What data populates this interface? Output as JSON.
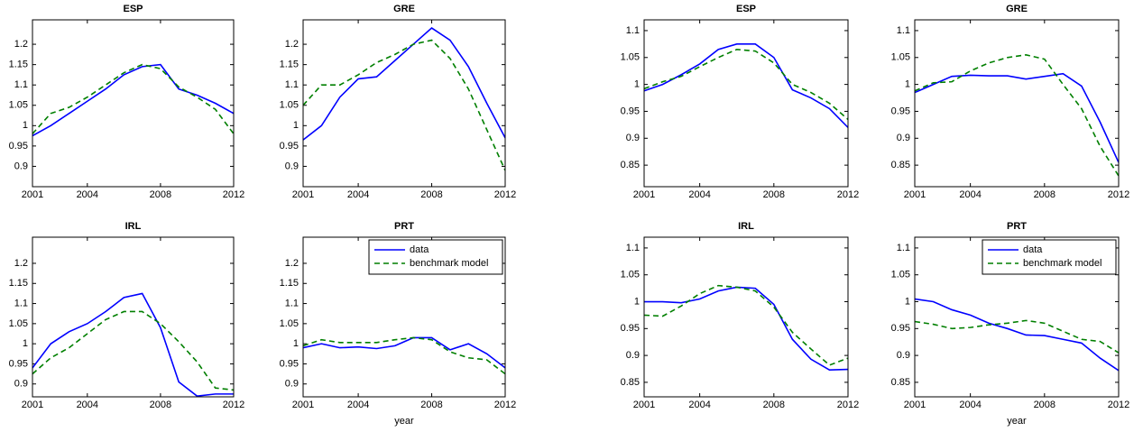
{
  "chart_data": [
    {
      "type": "line",
      "title": "ESP",
      "x": [
        2001,
        2002,
        2003,
        2004,
        2005,
        2006,
        2007,
        2008,
        2009,
        2010,
        2011,
        2012
      ],
      "xlim": [
        2001,
        2012
      ],
      "xticks": [
        2001,
        2004,
        2008,
        2012
      ],
      "ylim": [
        0.85,
        1.26
      ],
      "yticks": [
        0.9,
        0.95,
        1,
        1.05,
        1.1,
        1.15,
        1.2
      ],
      "series": [
        {
          "color": "#0000ff",
          "dash": "solid",
          "values": [
            0.975,
            1.0,
            1.03,
            1.06,
            1.09,
            1.125,
            1.145,
            1.15,
            1.09,
            1.075,
            1.055,
            1.03
          ]
        },
        {
          "color": "#007f00",
          "dash": "dashed",
          "values": [
            0.98,
            1.03,
            1.045,
            1.07,
            1.1,
            1.13,
            1.15,
            1.14,
            1.095,
            1.07,
            1.04,
            0.98
          ]
        }
      ]
    },
    {
      "type": "line",
      "title": "GRE",
      "x": [
        2001,
        2002,
        2003,
        2004,
        2005,
        2006,
        2007,
        2008,
        2009,
        2010,
        2011,
        2012
      ],
      "xlim": [
        2001,
        2012
      ],
      "xticks": [
        2001,
        2004,
        2008,
        2012
      ],
      "ylim": [
        0.85,
        1.26
      ],
      "yticks": [
        0.9,
        0.95,
        1,
        1.05,
        1.1,
        1.15,
        1.2
      ],
      "series": [
        {
          "color": "#0000ff",
          "dash": "solid",
          "values": [
            0.965,
            1.0,
            1.07,
            1.115,
            1.12,
            1.16,
            1.2,
            1.24,
            1.21,
            1.145,
            1.055,
            0.97
          ]
        },
        {
          "color": "#007f00",
          "dash": "dashed",
          "values": [
            1.05,
            1.1,
            1.1,
            1.125,
            1.155,
            1.175,
            1.2,
            1.21,
            1.165,
            1.09,
            0.99,
            0.89
          ]
        }
      ]
    },
    {
      "type": "line",
      "title": "ESP",
      "x": [
        2001,
        2002,
        2003,
        2004,
        2005,
        2006,
        2007,
        2008,
        2009,
        2010,
        2011,
        2012
      ],
      "xlim": [
        2001,
        2012
      ],
      "xticks": [
        2001,
        2004,
        2008,
        2012
      ],
      "ylim": [
        0.81,
        1.12
      ],
      "yticks": [
        0.85,
        0.9,
        0.95,
        1,
        1.05,
        1.1
      ],
      "series": [
        {
          "color": "#0000ff",
          "dash": "solid",
          "values": [
            0.988,
            1.0,
            1.018,
            1.038,
            1.065,
            1.075,
            1.075,
            1.05,
            0.99,
            0.975,
            0.955,
            0.92
          ]
        },
        {
          "color": "#007f00",
          "dash": "dashed",
          "values": [
            0.992,
            1.005,
            1.015,
            1.033,
            1.05,
            1.065,
            1.062,
            1.04,
            1.0,
            0.985,
            0.965,
            0.935
          ]
        }
      ]
    },
    {
      "type": "line",
      "title": "GRE",
      "x": [
        2001,
        2002,
        2003,
        2004,
        2005,
        2006,
        2007,
        2008,
        2009,
        2010,
        2011,
        2012
      ],
      "xlim": [
        2001,
        2012
      ],
      "xticks": [
        2001,
        2004,
        2008,
        2012
      ],
      "ylim": [
        0.81,
        1.12
      ],
      "yticks": [
        0.85,
        0.9,
        0.95,
        1,
        1.05,
        1.1
      ],
      "series": [
        {
          "color": "#0000ff",
          "dash": "solid",
          "values": [
            0.985,
            1.0,
            1.015,
            1.017,
            1.016,
            1.016,
            1.01,
            1.015,
            1.02,
            0.997,
            0.93,
            0.855
          ]
        },
        {
          "color": "#007f00",
          "dash": "dashed",
          "values": [
            0.988,
            1.003,
            1.005,
            1.025,
            1.04,
            1.05,
            1.055,
            1.047,
            1.0,
            0.955,
            0.885,
            0.83
          ]
        }
      ]
    },
    {
      "type": "line",
      "title": "IRL",
      "x": [
        2001,
        2002,
        2003,
        2004,
        2005,
        2006,
        2007,
        2008,
        2009,
        2010,
        2011,
        2012
      ],
      "xlim": [
        2001,
        2012
      ],
      "xticks": [
        2001,
        2004,
        2008,
        2012
      ],
      "ylim": [
        0.868,
        1.265
      ],
      "yticks": [
        0.9,
        0.95,
        1,
        1.05,
        1.1,
        1.15,
        1.2
      ],
      "series": [
        {
          "color": "#0000ff",
          "dash": "solid",
          "values": [
            0.94,
            1.0,
            1.03,
            1.05,
            1.08,
            1.115,
            1.125,
            1.04,
            0.905,
            0.87,
            0.875,
            0.875
          ]
        },
        {
          "color": "#007f00",
          "dash": "dashed",
          "values": [
            0.925,
            0.965,
            0.99,
            1.025,
            1.06,
            1.08,
            1.08,
            1.05,
            1.005,
            0.955,
            0.89,
            0.885
          ]
        }
      ]
    },
    {
      "type": "line",
      "title": "PRT",
      "xlabel": "year",
      "legend": "upper right",
      "x": [
        2001,
        2002,
        2003,
        2004,
        2005,
        2006,
        2007,
        2008,
        2009,
        2010,
        2011,
        2012
      ],
      "xlim": [
        2001,
        2012
      ],
      "xticks": [
        2001,
        2004,
        2008,
        2012
      ],
      "ylim": [
        0.868,
        1.265
      ],
      "yticks": [
        0.9,
        0.95,
        1,
        1.05,
        1.1,
        1.15,
        1.2
      ],
      "series": [
        {
          "name": "data",
          "color": "#0000ff",
          "dash": "solid",
          "values": [
            0.99,
            1.0,
            0.99,
            0.992,
            0.988,
            0.995,
            1.015,
            1.015,
            0.985,
            1.0,
            0.975,
            0.94
          ]
        },
        {
          "name": "benchmark model",
          "color": "#007f00",
          "dash": "dashed",
          "values": [
            0.995,
            1.01,
            1.003,
            1.003,
            1.003,
            1.01,
            1.015,
            1.01,
            0.98,
            0.965,
            0.96,
            0.925
          ]
        }
      ]
    },
    {
      "type": "line",
      "title": "IRL",
      "x": [
        2001,
        2002,
        2003,
        2004,
        2005,
        2006,
        2007,
        2008,
        2009,
        2010,
        2011,
        2012
      ],
      "xlim": [
        2001,
        2012
      ],
      "xticks": [
        2001,
        2004,
        2008,
        2012
      ],
      "ylim": [
        0.823,
        1.12
      ],
      "yticks": [
        0.85,
        0.9,
        0.95,
        1,
        1.05,
        1.1
      ],
      "series": [
        {
          "color": "#0000ff",
          "dash": "solid",
          "values": [
            1.0,
            1.0,
            0.998,
            1.005,
            1.02,
            1.027,
            1.025,
            0.995,
            0.93,
            0.893,
            0.873,
            0.874
          ]
        },
        {
          "color": "#007f00",
          "dash": "dashed",
          "values": [
            0.975,
            0.973,
            0.992,
            1.015,
            1.03,
            1.027,
            1.02,
            0.99,
            0.943,
            0.912,
            0.882,
            0.895
          ]
        }
      ]
    },
    {
      "type": "line",
      "title": "PRT",
      "xlabel": "year",
      "legend": "upper right",
      "x": [
        2001,
        2002,
        2003,
        2004,
        2005,
        2006,
        2007,
        2008,
        2009,
        2010,
        2011,
        2012
      ],
      "xlim": [
        2001,
        2012
      ],
      "xticks": [
        2001,
        2004,
        2008,
        2012
      ],
      "ylim": [
        0.823,
        1.12
      ],
      "yticks": [
        0.85,
        0.9,
        0.95,
        1,
        1.05,
        1.1
      ],
      "series": [
        {
          "name": "data",
          "color": "#0000ff",
          "dash": "solid",
          "values": [
            1.005,
            1.0,
            0.985,
            0.975,
            0.96,
            0.95,
            0.938,
            0.937,
            0.93,
            0.923,
            0.895,
            0.872
          ]
        },
        {
          "name": "benchmark model",
          "color": "#007f00",
          "dash": "dashed",
          "values": [
            0.963,
            0.958,
            0.95,
            0.952,
            0.957,
            0.96,
            0.965,
            0.96,
            0.945,
            0.93,
            0.926,
            0.905
          ]
        }
      ]
    }
  ]
}
